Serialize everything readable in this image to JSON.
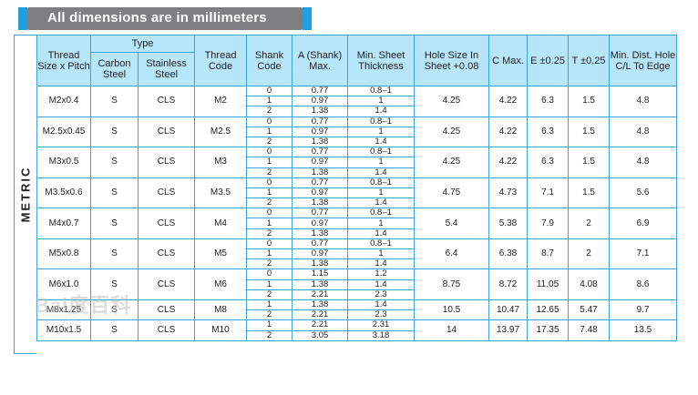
{
  "banner": {
    "text": "All dimensions are in millimeters"
  },
  "side_label": "METRIC",
  "headers": {
    "thread_size": "Thread Size x Pitch",
    "type": "Type",
    "carbon_steel": "Carbon Steel",
    "stainless_steel": "Stainless Steel",
    "thread_code": "Thread Code",
    "shank_code": "Shank Code",
    "a_shank": "A (Shank) Max.",
    "min_sheet": "Min. Sheet Thickness",
    "hole_size": "Hole Size In Sheet +0.08",
    "c_max": "C Max.",
    "e": "E ±0.25",
    "t": "T ±0.25",
    "min_dist": "Min. Dist. Hole C/L To Edge"
  },
  "rows": [
    {
      "thread": "M2x0.4",
      "carbon": "S",
      "stainless": "CLS",
      "code": "M2",
      "subs": [
        {
          "shank": "0",
          "a": "0.77",
          "min": "0.8–1"
        },
        {
          "shank": "1",
          "a": "0.97",
          "min": "1"
        },
        {
          "shank": "2",
          "a": "1.38",
          "min": "1.4"
        }
      ],
      "hole": "4.25",
      "c": "4.22",
      "e": "6.3",
      "t": "1.5",
      "dist": "4.8"
    },
    {
      "thread": "M2.5x0.45",
      "carbon": "S",
      "stainless": "CLS",
      "code": "M2.5",
      "subs": [
        {
          "shank": "0",
          "a": "0.77",
          "min": "0.8–1"
        },
        {
          "shank": "1",
          "a": "0.97",
          "min": "1"
        },
        {
          "shank": "2",
          "a": "1.38",
          "min": "1.4"
        }
      ],
      "hole": "4.25",
      "c": "4.22",
      "e": "6.3",
      "t": "1.5",
      "dist": "4.8"
    },
    {
      "thread": "M3x0.5",
      "carbon": "S",
      "stainless": "CLS",
      "code": "M3",
      "subs": [
        {
          "shank": "0",
          "a": "0.77",
          "min": "0.8–1"
        },
        {
          "shank": "1",
          "a": "0.97",
          "min": "1"
        },
        {
          "shank": "2",
          "a": "1.38",
          "min": "1.4"
        }
      ],
      "hole": "4.25",
      "c": "4.22",
      "e": "6.3",
      "t": "1.5",
      "dist": "4.8"
    },
    {
      "thread": "M3.5x0.6",
      "carbon": "S",
      "stainless": "CLS",
      "code": "M3.5",
      "subs": [
        {
          "shank": "0",
          "a": "0.77",
          "min": "0.8–1"
        },
        {
          "shank": "1",
          "a": "0.97",
          "min": "1"
        },
        {
          "shank": "2",
          "a": "1.38",
          "min": "1.4"
        }
      ],
      "hole": "4.75",
      "c": "4.73",
      "e": "7.1",
      "t": "1.5",
      "dist": "5.6"
    },
    {
      "thread": "M4x0.7",
      "carbon": "S",
      "stainless": "CLS",
      "code": "M4",
      "subs": [
        {
          "shank": "0",
          "a": "0.77",
          "min": "0.8–1"
        },
        {
          "shank": "1",
          "a": "0.97",
          "min": "1"
        },
        {
          "shank": "2",
          "a": "1.38",
          "min": "1.4"
        }
      ],
      "hole": "5.4",
      "c": "5.38",
      "e": "7.9",
      "t": "2",
      "dist": "6.9"
    },
    {
      "thread": "M5x0.8",
      "carbon": "S",
      "stainless": "CLS",
      "code": "M5",
      "subs": [
        {
          "shank": "0",
          "a": "0.77",
          "min": "0.8–1"
        },
        {
          "shank": "1",
          "a": "0.97",
          "min": "1"
        },
        {
          "shank": "2",
          "a": "1.38",
          "min": "1.4"
        }
      ],
      "hole": "6.4",
      "c": "6.38",
      "e": "8.7",
      "t": "2",
      "dist": "7.1"
    },
    {
      "thread": "M6x1.0",
      "carbon": "S",
      "stainless": "CLS",
      "code": "M6",
      "subs": [
        {
          "shank": "0",
          "a": "1.15",
          "min": "1.2"
        },
        {
          "shank": "1",
          "a": "1.38",
          "min": "1.4"
        },
        {
          "shank": "2",
          "a": "2.21",
          "min": "2.3"
        }
      ],
      "hole": "8.75",
      "c": "8.72",
      "e": "11.05",
      "t": "4.08",
      "dist": "8.6"
    },
    {
      "thread": "M8x1.25",
      "carbon": "S",
      "stainless": "CLS",
      "code": "M8",
      "subs": [
        {
          "shank": "1",
          "a": "1.38",
          "min": "1.4"
        },
        {
          "shank": "2",
          "a": "2.21",
          "min": "2.3"
        }
      ],
      "hole": "10.5",
      "c": "10.47",
      "e": "12.65",
      "t": "5.47",
      "dist": "9.7"
    },
    {
      "thread": "M10x1.5",
      "carbon": "S",
      "stainless": "CLS",
      "code": "M10",
      "subs": [
        {
          "shank": "1",
          "a": "2.21",
          "min": "2.31"
        },
        {
          "shank": "2",
          "a": "3.05",
          "min": "3.18"
        }
      ],
      "hole": "14",
      "c": "13.97",
      "e": "17.35",
      "t": "7.48",
      "dist": "13.5"
    }
  ],
  "watermark": "Bai度百科"
}
